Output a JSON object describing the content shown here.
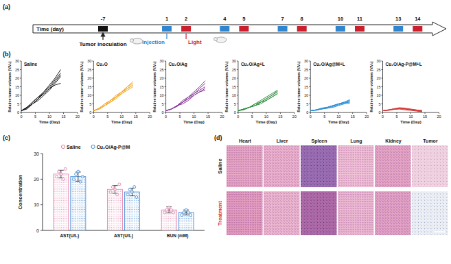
{
  "panel_labels": [
    "(a)",
    "(b)",
    "(c)",
    "(d)"
  ],
  "timeline": {
    "axis_label": "Time (day)",
    "days": [
      -7,
      1,
      2,
      4,
      5,
      7,
      8,
      10,
      11,
      13,
      14
    ],
    "events": [
      {
        "label": "Tumor inoculation",
        "days": [
          -7
        ],
        "color": "#111111"
      },
      {
        "label": "Injection",
        "days": [
          1,
          4,
          7,
          10,
          13
        ],
        "color": "#2f86cf"
      },
      {
        "label": "Light",
        "days": [
          2,
          5,
          8,
          11,
          14
        ],
        "color": "#cc1f2d"
      }
    ]
  },
  "chart_data": [
    {
      "type": "line",
      "title": "Saline",
      "x_label": "Time (Day)",
      "y_label": "Relative tumor volumes (V/V₀)",
      "color": "#1a1a1a",
      "x": [
        0,
        2,
        4,
        6,
        8,
        10,
        12,
        14
      ],
      "xlim": [
        0,
        20
      ],
      "xticks": [
        0,
        5,
        10,
        15,
        20
      ],
      "ylim": [
        0,
        30
      ],
      "yticks": [
        0,
        5,
        10,
        15,
        20,
        25,
        30
      ],
      "series": [
        {
          "values": [
            1,
            3,
            6,
            9,
            12,
            16,
            20,
            25
          ]
        },
        {
          "values": [
            1,
            3,
            5,
            8,
            11,
            14,
            18,
            22
          ]
        },
        {
          "values": [
            1,
            2.5,
            5,
            8,
            12,
            15,
            19,
            23
          ]
        },
        {
          "values": [
            1,
            3,
            6,
            9,
            11,
            14,
            16,
            17
          ]
        },
        {
          "values": [
            1,
            2,
            5,
            7,
            10,
            13,
            17,
            21
          ]
        }
      ]
    },
    {
      "type": "line",
      "title": "Cu₂O",
      "x_label": "Time (Day)",
      "y_label": "Relative tumor volumes (V/V₀)",
      "color": "#f2a623",
      "x": [
        0,
        2,
        4,
        6,
        8,
        10,
        12,
        14
      ],
      "xlim": [
        0,
        20
      ],
      "xticks": [
        0,
        5,
        10,
        15,
        20
      ],
      "ylim": [
        0,
        30
      ],
      "yticks": [
        0,
        5,
        10,
        15,
        20,
        25,
        30
      ],
      "series": [
        {
          "values": [
            1,
            2.5,
            5,
            7,
            10,
            12,
            15,
            18
          ]
        },
        {
          "values": [
            1,
            2,
            4,
            7,
            9,
            12,
            14,
            16
          ]
        },
        {
          "values": [
            1,
            2,
            4,
            6,
            9,
            11,
            13,
            15
          ]
        },
        {
          "values": [
            1,
            2.5,
            5,
            7,
            9,
            12,
            15,
            17
          ]
        },
        {
          "values": [
            1,
            2,
            4,
            6,
            8,
            11,
            14,
            16
          ]
        }
      ]
    },
    {
      "type": "line",
      "title": "Cu₂O/Ag",
      "x_label": "Time (Day)",
      "y_label": "Relative tumor volumes (V/V₀)",
      "color": "#8b3a9c",
      "x": [
        0,
        2,
        4,
        6,
        8,
        10,
        12,
        14
      ],
      "xlim": [
        0,
        20
      ],
      "xticks": [
        0,
        5,
        10,
        15,
        20
      ],
      "ylim": [
        0,
        30
      ],
      "yticks": [
        0,
        5,
        10,
        15,
        20,
        25,
        30
      ],
      "series": [
        {
          "values": [
            1,
            2,
            4,
            7,
            9,
            12,
            15,
            18.5
          ]
        },
        {
          "values": [
            1,
            2,
            4,
            6,
            8,
            11,
            13,
            15
          ]
        },
        {
          "values": [
            1,
            2,
            3.5,
            6,
            8,
            10,
            12,
            14
          ]
        },
        {
          "values": [
            1,
            2,
            4,
            6,
            9,
            11,
            14,
            17
          ]
        },
        {
          "values": [
            1,
            2,
            4,
            5,
            7,
            10,
            12,
            13
          ]
        }
      ]
    },
    {
      "type": "line",
      "title": "Cu₂O/Ag+L",
      "x_label": "Time (Day)",
      "y_label": "Relative tumor volumes (V/V₀)",
      "color": "#2f8f3e",
      "x": [
        0,
        2,
        4,
        6,
        8,
        10,
        12,
        14
      ],
      "xlim": [
        0,
        20
      ],
      "xticks": [
        0,
        5,
        10,
        15,
        20
      ],
      "ylim": [
        0,
        30
      ],
      "yticks": [
        0,
        5,
        10,
        15,
        20,
        25,
        30
      ],
      "series": [
        {
          "values": [
            1,
            2,
            3,
            5,
            7,
            9,
            11,
            13
          ]
        },
        {
          "values": [
            1,
            2,
            3,
            4,
            6,
            8,
            10,
            12
          ]
        },
        {
          "values": [
            1,
            1.5,
            3,
            4,
            6,
            7,
            9,
            11
          ]
        },
        {
          "values": [
            1,
            2,
            3,
            5,
            6,
            8,
            10,
            12.5
          ]
        },
        {
          "values": [
            1,
            2,
            3,
            4,
            5,
            7,
            9,
            11
          ]
        }
      ]
    },
    {
      "type": "line",
      "title": "Cu₂O/Ag@M+L",
      "x_label": "Time (Day)",
      "y_label": "Relative tumor volumes (V/V₀)",
      "color": "#2b8fd6",
      "x": [
        0,
        2,
        4,
        6,
        8,
        10,
        12,
        14
      ],
      "xlim": [
        0,
        20
      ],
      "xticks": [
        0,
        5,
        10,
        15,
        20
      ],
      "ylim": [
        0,
        30
      ],
      "yticks": [
        0,
        5,
        10,
        15,
        20,
        25,
        30
      ],
      "series": [
        {
          "values": [
            1,
            1.5,
            2.5,
            3,
            4,
            5,
            6,
            7.5
          ]
        },
        {
          "values": [
            1,
            1.5,
            2,
            3,
            4,
            5,
            5.5,
            6.5
          ]
        },
        {
          "values": [
            1,
            1.5,
            2,
            2.5,
            3.5,
            4.5,
            5.5,
            6
          ]
        },
        {
          "values": [
            1,
            1.5,
            2.5,
            3,
            4,
            5,
            6,
            7
          ]
        },
        {
          "values": [
            1,
            1.2,
            2,
            2.5,
            3,
            4,
            5,
            5.5
          ]
        }
      ]
    },
    {
      "type": "line",
      "title": "Cu₂O/Ag-P@M+L",
      "x_label": "Time (Day)",
      "y_label": "Relative tumor volumes (V/V₀)",
      "color": "#d43a3a",
      "x": [
        0,
        2,
        4,
        6,
        8,
        10,
        12,
        14
      ],
      "xlim": [
        0,
        20
      ],
      "xticks": [
        0,
        5,
        10,
        15,
        20
      ],
      "ylim": [
        0,
        30
      ],
      "yticks": [
        0,
        5,
        10,
        15,
        20,
        25,
        30
      ],
      "series": [
        {
          "values": [
            1,
            1.5,
            2,
            2.5,
            2,
            1.5,
            1,
            0.5
          ]
        },
        {
          "values": [
            1,
            1.5,
            2.2,
            2.8,
            2.5,
            2,
            1.5,
            1
          ]
        },
        {
          "values": [
            1,
            1.2,
            1.8,
            2.2,
            2,
            1.5,
            1.2,
            0.8
          ]
        },
        {
          "values": [
            1,
            1.3,
            1.8,
            2,
            1.5,
            1.2,
            0.8,
            0.4
          ]
        },
        {
          "values": [
            1,
            1.5,
            2,
            2.3,
            2.2,
            1.8,
            1.4,
            1.2
          ]
        }
      ]
    },
    {
      "type": "bar",
      "y_label": "Concentration",
      "legend": "top",
      "categories": [
        "AST(U/L)",
        "AST(U/L)",
        "BUN (mM)"
      ],
      "ylim": [
        0,
        30
      ],
      "yticks": [
        0,
        10,
        20,
        30
      ],
      "series": [
        {
          "name": "Saline",
          "color": "#e07aa8",
          "values": [
            22,
            16,
            8
          ],
          "errors": [
            1.5,
            1.5,
            1.2
          ],
          "points": [
            [
              21,
              23,
              22,
              20,
              24
            ],
            [
              15,
              17,
              16,
              14,
              18
            ],
            [
              7,
              8,
              9,
              8,
              7
            ]
          ]
        },
        {
          "name": "Cu₂O/Ag-P@M",
          "color": "#3a86d4",
          "values": [
            21,
            15,
            7
          ],
          "errors": [
            1.8,
            1.5,
            1.0
          ],
          "points": [
            [
              20,
              22,
              23,
              19,
              21
            ],
            [
              14,
              16,
              15,
              17,
              13
            ],
            [
              6,
              7,
              8,
              7,
              6
            ]
          ]
        }
      ]
    }
  ],
  "histology": {
    "columns": [
      "Heart",
      "Liver",
      "Spleen",
      "Lung",
      "Kidney",
      "Tumor"
    ],
    "rows": [
      {
        "label": "Saline",
        "color": "#111111"
      },
      {
        "label": "Treatment",
        "color": "#d42a2a"
      }
    ]
  }
}
